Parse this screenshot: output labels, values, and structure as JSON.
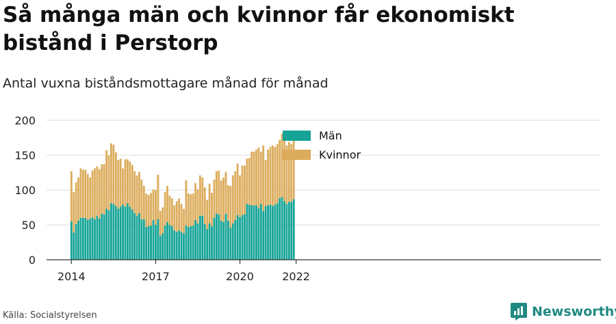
{
  "title": "Så många män och kvinnor får ekonomiskt bistånd i Perstorp",
  "subtitle": "Antal vuxna biståndsmottagare månad för månad",
  "source": "Källa: Socialstyrelsen",
  "brand": "Newsworthy",
  "colors": {
    "man": "#14a396",
    "kvinnor": "#dcac5c",
    "grid": "#dddddd",
    "axis": "#333333",
    "brand": "#1f8a80"
  },
  "chart_data": {
    "type": "bar",
    "stacked": true,
    "ylim": [
      0,
      200
    ],
    "yticks": [
      0,
      50,
      100,
      150,
      200
    ],
    "xtick_labels": [
      "2014",
      "2017",
      "2020",
      "2022"
    ],
    "legend": [
      "Män",
      "Kvinnor"
    ],
    "legend_position": "top-center",
    "grid": true,
    "segments": [
      {
        "start": "2014-01",
        "man": [
          55,
          39,
          51,
          56,
          60,
          60,
          60,
          57,
          59,
          61,
          58,
          63,
          59,
          66,
          65,
          73,
          71,
          81,
          80,
          77,
          73,
          76,
          79,
          76,
          81,
          76,
          72,
          67,
          63,
          67,
          58,
          58,
          47,
          48,
          49,
          57,
          50,
          59
        ],
        "total": [
          127,
          97,
          111,
          118,
          131,
          129,
          129,
          123,
          118,
          128,
          131,
          134,
          130,
          137,
          137,
          157,
          150,
          167,
          165,
          154,
          143,
          145,
          131,
          144,
          144,
          141,
          136,
          127,
          121,
          126,
          115,
          106,
          95,
          93,
          96,
          101,
          100,
          118
        ]
      },
      {
        "start": "2017-02",
        "man": [
          58,
          34,
          38,
          49,
          54,
          50,
          48,
          42,
          40,
          42,
          40,
          38,
          49,
          47,
          48,
          49,
          57,
          52,
          63,
          63,
          51,
          44,
          52,
          48,
          60,
          66,
          65,
          56,
          54,
          66,
          56,
          46,
          52,
          57,
          64,
          61,
          64,
          65,
          80,
          79,
          78,
          78,
          78,
          74,
          80,
          70,
          77,
          78,
          79,
          77,
          79,
          81,
          88,
          90,
          84,
          80,
          83,
          83,
          87
        ],
        "total": [
          122,
          70,
          75,
          97,
          106,
          92,
          88,
          78,
          84,
          88,
          80,
          73,
          114,
          95,
          94,
          95,
          110,
          101,
          121,
          118,
          104,
          86,
          109,
          96,
          115,
          127,
          128,
          114,
          118,
          126,
          107,
          106,
          121,
          127,
          138,
          121,
          135,
          135,
          145,
          146,
          155,
          155,
          158,
          161,
          155,
          164,
          143,
          158,
          162,
          164,
          162,
          166,
          172,
          181,
          172,
          164,
          169,
          166,
          176
        ]
      }
    ]
  }
}
